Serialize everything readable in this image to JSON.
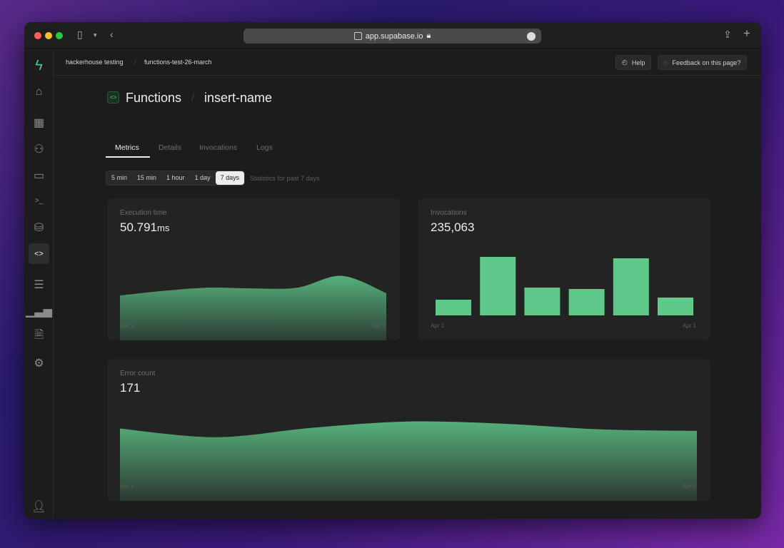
{
  "browser": {
    "url": "app.supabase.io"
  },
  "breadcrumb": [
    "hackerhouse testing",
    "functions-test-26-march"
  ],
  "header": {
    "help": "Help",
    "feedback": "Feedback on this page?"
  },
  "page": {
    "section": "Functions",
    "name": "insert-name"
  },
  "tabs": [
    {
      "label": "Metrics",
      "active": true
    },
    {
      "label": "Details"
    },
    {
      "label": "Invocations"
    },
    {
      "label": "Logs"
    }
  ],
  "ranges": {
    "options": [
      "5 min",
      "15 min",
      "1 hour",
      "1 day",
      "7 days"
    ],
    "selected": "7 days",
    "note": "Statistics for past 7 days"
  },
  "sidebar": {
    "icons": [
      "supabase-logo",
      "home",
      "table-editor",
      "users",
      "storage",
      "sql-terminal",
      "database",
      "functions",
      "logs-list",
      "reports",
      "docs",
      "settings",
      "account"
    ],
    "active": "functions"
  },
  "accent": "#5fc98a",
  "chart_data": [
    {
      "type": "area",
      "title": "Execution time",
      "value": "50.791",
      "unit": "ms",
      "x_labels": [
        "Apr 1",
        "Apr 1"
      ],
      "values": [
        49,
        55,
        59,
        58,
        59,
        74,
        52
      ]
    },
    {
      "type": "bar",
      "title": "Invocations",
      "value": "235,063",
      "x_labels": [
        "Apr 1",
        "Apr 1"
      ],
      "values": [
        22,
        82,
        39,
        37,
        80,
        25
      ]
    },
    {
      "type": "area",
      "title": "Error count",
      "value": "171",
      "x_labels": [
        "Apr 1",
        "Apr 1"
      ],
      "values": [
        84,
        73,
        85,
        93,
        90,
        83,
        81
      ]
    }
  ]
}
